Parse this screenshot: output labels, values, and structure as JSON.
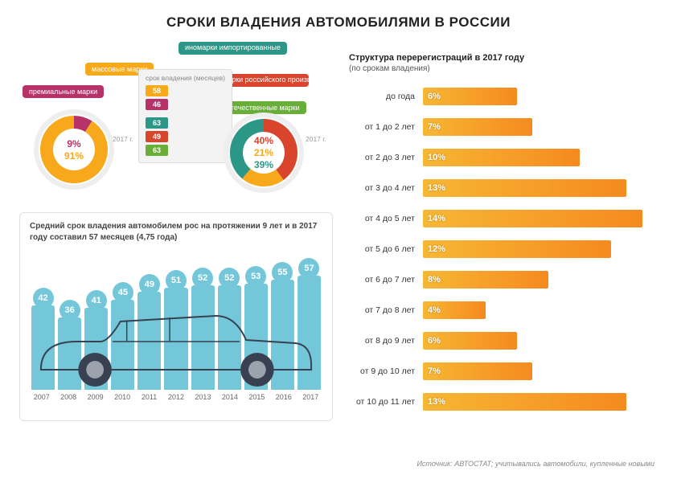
{
  "title": "СРОКИ ВЛАДЕНИЯ АВТОМОБИЛЯМИ В РОССИИ",
  "top": {
    "tags": {
      "premium": {
        "text": "премиальные марки",
        "color": "#b8326a"
      },
      "mass": {
        "text": "массовые марки",
        "color": "#f7a81b"
      },
      "import": {
        "text": "иномарки импортированные",
        "color": "#2c9687"
      },
      "ru_foreign": {
        "text": "иномарки российского производства",
        "color": "#d9442c"
      },
      "domestic": {
        "text": "отечественные марки",
        "color": "#6aae3a"
      }
    },
    "mid_header": "срок владения (месяцев)",
    "mid_2017": [
      {
        "v": "58",
        "c": "#f7a81b"
      },
      {
        "v": "46",
        "c": "#b8326a"
      }
    ],
    "mid_left": [
      {
        "v": "63",
        "c": "#2c9687"
      },
      {
        "v": "49",
        "c": "#d9442c"
      },
      {
        "v": "63",
        "c": "#6aae3a"
      }
    ],
    "donut1": {
      "year": "2017 г.",
      "segments": [
        {
          "pct": 9,
          "color": "#b8326a",
          "label": "9%"
        },
        {
          "pct": 91,
          "color": "#f7a81b",
          "label": "91%"
        }
      ]
    },
    "donut2": {
      "year": "2017 г.",
      "segments": [
        {
          "pct": 40,
          "color": "#d9442c",
          "label": "40%"
        },
        {
          "pct": 21,
          "color": "#f7a81b",
          "label": "21%"
        },
        {
          "pct": 39,
          "color": "#2c9687",
          "label": "39%"
        }
      ]
    }
  },
  "car": {
    "caption": "Средний срок владения автомобилем рос на протяжении 9 лет и в 2017 году составил 57 месяцев (4,75 года)",
    "bar_color": "#73c7d9",
    "values": [
      42,
      36,
      41,
      45,
      49,
      51,
      52,
      52,
      53,
      55,
      57
    ],
    "years": [
      "2007",
      "2008",
      "2009",
      "2010",
      "2011",
      "2012",
      "2013",
      "2014",
      "2015",
      "2016",
      "2017"
    ],
    "ymax": 70
  },
  "hbar": {
    "title": "Структура перерегистраций в 2017 году",
    "subtitle": "(по срокам владения)",
    "xmax": 15,
    "color_start": "#f7b733",
    "color_end": "#f58a1f",
    "rows": [
      {
        "label": "до года",
        "pct": 6
      },
      {
        "label": "от 1 до 2 лет",
        "pct": 7
      },
      {
        "label": "от 2 до 3 лет",
        "pct": 10
      },
      {
        "label": "от 3 до 4 лет",
        "pct": 13
      },
      {
        "label": "от 4 до 5 лет",
        "pct": 14
      },
      {
        "label": "от 5 до 6 лет",
        "pct": 12
      },
      {
        "label": "от 6 до 7 лет",
        "pct": 8
      },
      {
        "label": "от 7 до 8 лет",
        "pct": 4
      },
      {
        "label": "от 8 до 9 лет",
        "pct": 6
      },
      {
        "label": "от 9 до 10 лет",
        "pct": 7
      },
      {
        "label": "от 10 до 11 лет",
        "pct": 13
      }
    ]
  },
  "source": "Источник: АВТОСТАТ; учитывались автомобили, купленные новыми"
}
